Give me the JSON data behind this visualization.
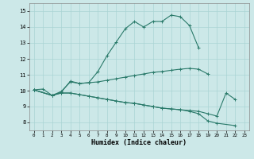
{
  "xlabel": "Humidex (Indice chaleur)",
  "xlim": [
    -0.5,
    23.5
  ],
  "ylim": [
    7.5,
    15.5
  ],
  "xticks": [
    0,
    1,
    2,
    3,
    4,
    5,
    6,
    7,
    8,
    9,
    10,
    11,
    12,
    13,
    14,
    15,
    16,
    17,
    18,
    19,
    20,
    21,
    22,
    23
  ],
  "yticks": [
    8,
    9,
    10,
    11,
    12,
    13,
    14,
    15
  ],
  "bg_color": "#cce8e8",
  "grid_color": "#aad4d4",
  "line_color": "#2a7a6a",
  "lines": [
    {
      "x": [
        0,
        1,
        2,
        3,
        4,
        5,
        6,
        7,
        8,
        9,
        10,
        11,
        12,
        13,
        14,
        15,
        16,
        17,
        18
      ],
      "y": [
        10.05,
        10.1,
        9.7,
        9.95,
        10.55,
        10.45,
        10.5,
        11.2,
        12.2,
        13.05,
        13.9,
        14.35,
        14.0,
        14.35,
        14.35,
        14.75,
        14.65,
        14.1,
        12.7
      ]
    },
    {
      "x": [
        0,
        2,
        3,
        4,
        5,
        6,
        7,
        8,
        9,
        10,
        11,
        12,
        13,
        14,
        15,
        16,
        17,
        18,
        19,
        20,
        21,
        22
      ],
      "y": [
        10.05,
        9.7,
        9.9,
        10.6,
        10.45,
        10.5,
        10.55,
        10.65,
        10.75,
        10.85,
        10.95,
        11.05,
        11.15,
        11.2,
        11.28,
        11.35,
        11.4,
        11.35,
        11.05,
        null,
        null,
        null
      ]
    },
    {
      "x": [
        0,
        2,
        3,
        4,
        5,
        6,
        7,
        8,
        9,
        10,
        11,
        12,
        13,
        14,
        15,
        16,
        17,
        18,
        19,
        20,
        21,
        22,
        23
      ],
      "y": [
        10.05,
        9.7,
        9.85,
        9.85,
        9.75,
        9.65,
        9.55,
        9.45,
        9.35,
        9.25,
        9.2,
        9.1,
        9.0,
        8.9,
        8.85,
        8.8,
        8.75,
        8.7,
        8.55,
        8.4,
        9.85,
        9.45,
        null
      ]
    },
    {
      "x": [
        0,
        2,
        3,
        4,
        5,
        6,
        7,
        8,
        9,
        10,
        11,
        12,
        13,
        14,
        15,
        16,
        17,
        18,
        19,
        20,
        21,
        22
      ],
      "y": [
        10.05,
        9.7,
        9.85,
        9.85,
        9.75,
        9.65,
        9.55,
        9.45,
        9.35,
        9.25,
        9.2,
        9.1,
        9.0,
        8.9,
        8.85,
        8.8,
        8.7,
        8.55,
        8.1,
        7.95,
        null,
        7.8
      ]
    }
  ]
}
